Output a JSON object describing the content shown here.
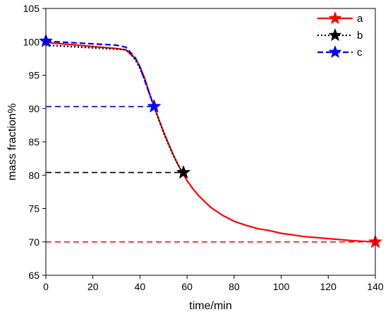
{
  "chart_data": {
    "type": "line",
    "title": "",
    "xlabel": "time/min",
    "ylabel": "mass fraction%",
    "xlim": [
      0,
      140
    ],
    "ylim": [
      65,
      105
    ],
    "xticks": [
      0,
      20,
      40,
      60,
      80,
      100,
      120,
      140
    ],
    "yticks": [
      65,
      70,
      75,
      80,
      85,
      90,
      95,
      100,
      105
    ],
    "grid": false,
    "legend_position": "top-right",
    "series": [
      {
        "name": "a",
        "color": "#ff0000",
        "line_style": "solid",
        "x": [
          0,
          10,
          20,
          30,
          34,
          38,
          40,
          42,
          44,
          46,
          48,
          50,
          52,
          54,
          56,
          58,
          60,
          62,
          65,
          70,
          75,
          80,
          85,
          90,
          95,
          100,
          110,
          120,
          130,
          140
        ],
        "y": [
          99.9,
          99.6,
          99.3,
          99.0,
          98.8,
          97.5,
          96.3,
          94.5,
          92.3,
          90.3,
          88.4,
          86.5,
          84.8,
          83.2,
          81.7,
          80.4,
          79.2,
          78.2,
          76.9,
          75.2,
          74.0,
          73.1,
          72.5,
          72.0,
          71.7,
          71.3,
          70.8,
          70.5,
          70.2,
          70.0
        ],
        "markers": [
          {
            "x": 140,
            "y": 70.0
          }
        ],
        "reference_line": {
          "y": 70.0,
          "x_from": 0,
          "x_to": 140,
          "color": "#ff0000"
        }
      },
      {
        "name": "b",
        "color": "#000000",
        "line_style": "dotted",
        "x": [
          0,
          10,
          20,
          30,
          34,
          36,
          38,
          40,
          42,
          44,
          46,
          48,
          50,
          52,
          54,
          56,
          58
        ],
        "y": [
          99.5,
          99.3,
          99.1,
          98.9,
          98.8,
          98.2,
          97.3,
          96.0,
          94.3,
          92.2,
          90.2,
          88.3,
          86.4,
          84.7,
          83.1,
          81.7,
          80.4
        ],
        "markers": [
          {
            "x": 58.5,
            "y": 80.4
          }
        ],
        "reference_line": {
          "y": 80.4,
          "x_from": 0,
          "x_to": 58.5,
          "color": "#000000"
        }
      },
      {
        "name": "c",
        "color": "#0000ff",
        "line_style": "dashed",
        "x": [
          0,
          10,
          20,
          30,
          34,
          38,
          40,
          42,
          44,
          46
        ],
        "y": [
          100.1,
          99.9,
          99.7,
          99.5,
          99.2,
          97.6,
          96.2,
          94.2,
          92.2,
          90.3
        ],
        "markers": [
          {
            "x": 0,
            "y": 100.1
          },
          {
            "x": 46,
            "y": 90.3
          }
        ],
        "reference_line": {
          "y": 90.3,
          "x_from": 0,
          "x_to": 46,
          "color": "#0000ff"
        }
      }
    ]
  }
}
